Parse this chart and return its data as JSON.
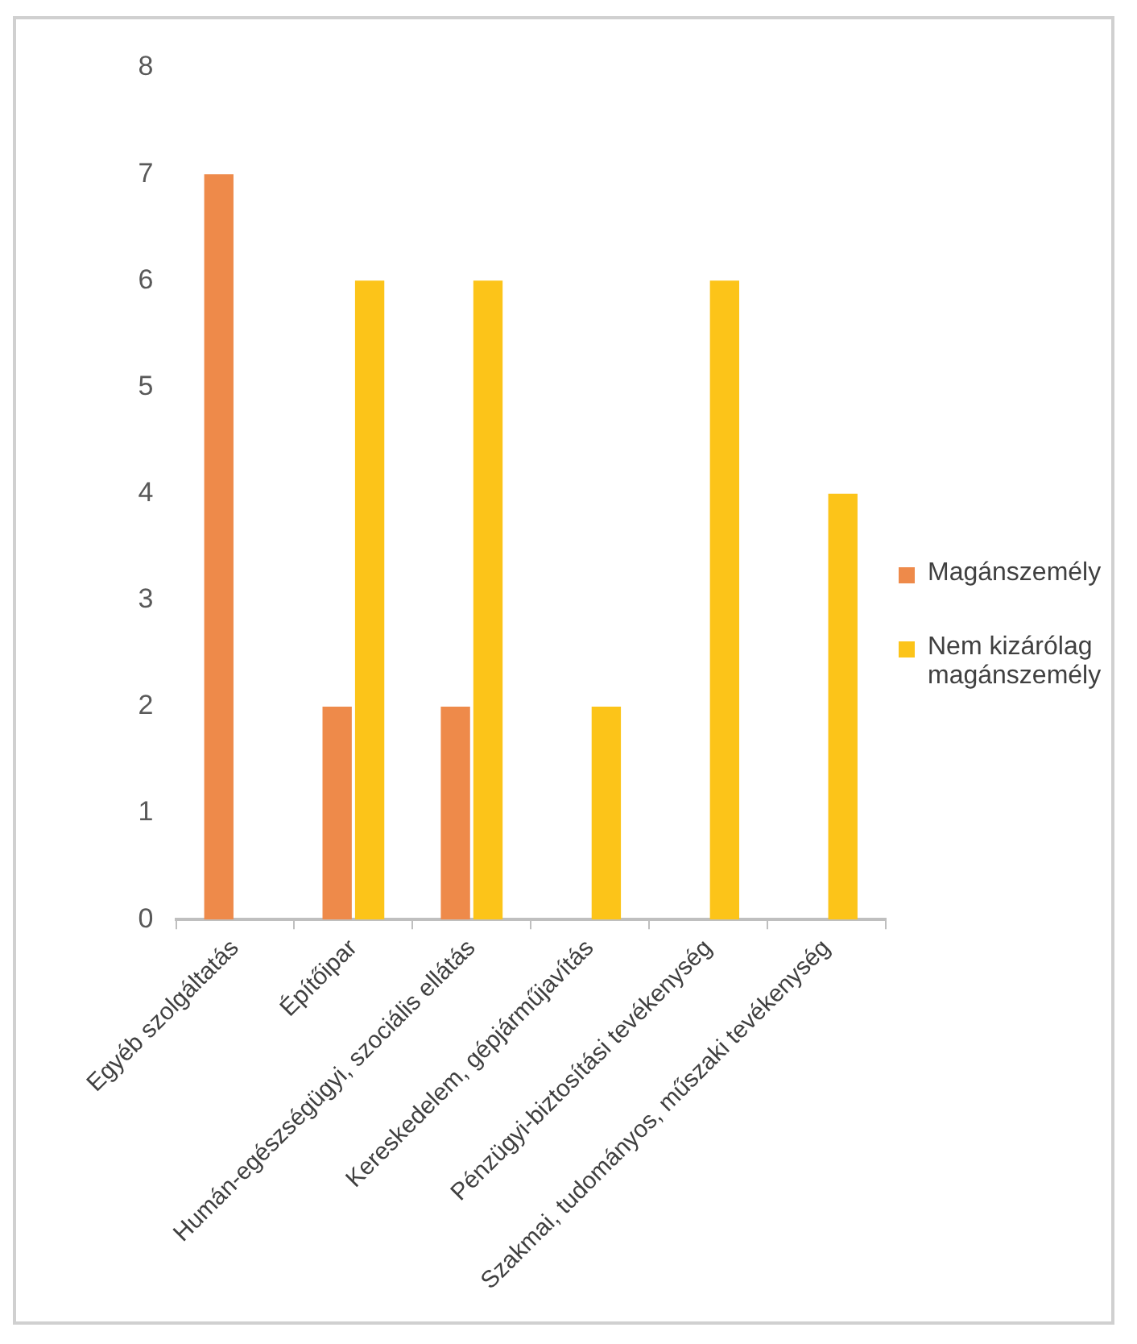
{
  "chart_data": {
    "type": "bar",
    "categories": [
      "Egyéb szolgáltatás",
      "Építőipar",
      "Humán-egészségügyi, szociális ellátás",
      "Kereskedelem, gépjárműjavítás",
      "Pénzügyi-biztosítási tevékenység",
      "Szakmai, tudományos, műszaki tevékenység"
    ],
    "series": [
      {
        "name": "Magánszemély",
        "color": "#ee8a4a",
        "values": [
          7,
          2,
          2,
          0,
          0,
          0
        ]
      },
      {
        "name": "Nem kizárólag magánszemély",
        "color": "#fcc419",
        "values": [
          0,
          6,
          6,
          2,
          6,
          4
        ]
      }
    ],
    "ylim": [
      0,
      8
    ],
    "yticks": [
      0,
      1,
      2,
      3,
      4,
      5,
      6,
      7,
      8
    ],
    "grid": false,
    "legend": "right"
  }
}
